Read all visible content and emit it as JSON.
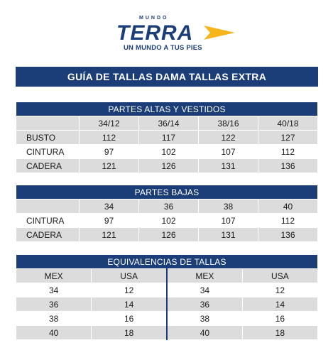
{
  "brand": {
    "pre": "MUNDO",
    "name": "TERRA",
    "slogan": "UN MUNDO A TUS PIES",
    "accent": "#f5b51b",
    "navy": "#1b3d78"
  },
  "title": "GUÍA DE TALLAS DAMA TALLAS EXTRA",
  "altas": {
    "heading": "PARTES ALTAS Y VESTIDOS",
    "sizes": [
      "34/12",
      "36/14",
      "38/16",
      "40/18"
    ],
    "rows": [
      {
        "label": "BUSTO",
        "values": [
          "112",
          "117",
          "122",
          "127"
        ]
      },
      {
        "label": "CINTURA",
        "values": [
          "97",
          "102",
          "107",
          "112"
        ]
      },
      {
        "label": "CADERA",
        "values": [
          "121",
          "126",
          "131",
          "136"
        ]
      }
    ]
  },
  "bajas": {
    "heading": "PARTES BAJAS",
    "sizes": [
      "34",
      "36",
      "38",
      "40"
    ],
    "rows": [
      {
        "label": "CINTURA",
        "values": [
          "97",
          "102",
          "107",
          "112"
        ]
      },
      {
        "label": "CADERA",
        "values": [
          "121",
          "126",
          "131",
          "136"
        ]
      }
    ]
  },
  "equiv": {
    "heading": "EQUIVALENCIAS DE TALLAS",
    "columns": [
      "MEX",
      "USA",
      "MEX",
      "USA"
    ],
    "rows": [
      [
        "34",
        "12",
        "34",
        "12"
      ],
      [
        "36",
        "14",
        "36",
        "14"
      ],
      [
        "38",
        "16",
        "38",
        "16"
      ],
      [
        "40",
        "18",
        "40",
        "18"
      ]
    ]
  }
}
